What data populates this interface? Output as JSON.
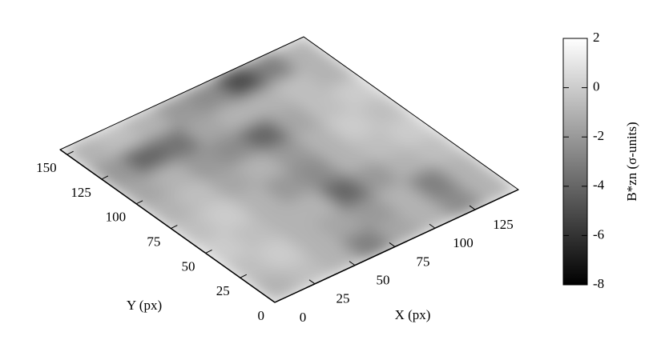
{
  "chart_data": {
    "type": "surface",
    "x_label": "X (px)",
    "y_label": "Y (px)",
    "xlim": [
      0,
      152
    ],
    "ylim": [
      0,
      155
    ],
    "xticks": [
      0,
      25,
      50,
      75,
      100,
      125
    ],
    "yticks": [
      0,
      25,
      50,
      75,
      100,
      125,
      150
    ],
    "z": [
      [
        -1,
        -0.5,
        -1,
        -3,
        -1.5,
        -1,
        -2.5,
        -1
      ],
      [
        -0.5,
        0,
        -1,
        -1.5,
        -2,
        -1,
        -3,
        -1
      ],
      [
        0,
        -0.5,
        -1,
        -1,
        -4,
        -2,
        -1,
        -0.5
      ],
      [
        -0.5,
        0,
        -1,
        -2,
        -2.5,
        -1,
        -0.5,
        0
      ],
      [
        -1,
        -0.5,
        -1.5,
        -1,
        -2,
        -1,
        0,
        -0.5
      ],
      [
        -1.5,
        -1,
        -2,
        -2.5,
        -4,
        -1.5,
        -0.5,
        0
      ],
      [
        -2,
        -4,
        -3.5,
        -1.5,
        -1,
        -1,
        -0.5,
        -1
      ],
      [
        -1,
        -0.5,
        -1,
        -2,
        -2.5,
        -5,
        -3,
        -1
      ]
    ],
    "colorbar_label": "B*zn (σ-units)",
    "zlim": [
      -8,
      2
    ],
    "zticks": [
      -8,
      -6,
      -4,
      -2,
      0,
      2
    ]
  }
}
